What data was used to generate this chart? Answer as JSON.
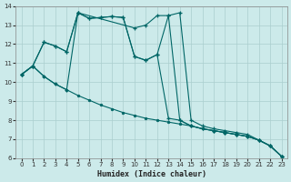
{
  "xlabel": "Humidex (Indice chaleur)",
  "xlim": [
    -0.5,
    23.5
  ],
  "ylim": [
    6,
    14
  ],
  "xticks": [
    0,
    1,
    2,
    3,
    4,
    5,
    6,
    7,
    8,
    9,
    10,
    11,
    12,
    13,
    14,
    15,
    16,
    17,
    18,
    19,
    20,
    21,
    22,
    23
  ],
  "yticks": [
    6,
    7,
    8,
    9,
    10,
    11,
    12,
    13,
    14
  ],
  "bg_color": "#cceaea",
  "line_color": "#006666",
  "grid_color": "#aacece",
  "lines": [
    {
      "x": [
        0,
        1,
        2,
        3,
        4,
        5,
        6,
        7,
        8,
        9,
        10,
        11,
        12,
        13,
        14,
        15,
        16,
        17,
        18,
        19,
        20,
        21,
        22,
        23
      ],
      "y": [
        10.4,
        10.85,
        10.3,
        9.9,
        9.6,
        9.3,
        9.05,
        8.8,
        8.6,
        8.4,
        8.25,
        8.1,
        8.0,
        7.9,
        7.8,
        7.7,
        7.55,
        7.45,
        7.35,
        7.25,
        7.15,
        6.95,
        6.65,
        6.1
      ],
      "marker": "o",
      "ms": 2.0
    },
    {
      "x": [
        0,
        1,
        2,
        3,
        4,
        5,
        6,
        7,
        8,
        9,
        10,
        11,
        12,
        13,
        14,
        15,
        16,
        17,
        18,
        19,
        20,
        21,
        22,
        23
      ],
      "y": [
        10.4,
        10.85,
        10.3,
        9.9,
        9.6,
        13.65,
        13.35,
        13.4,
        13.45,
        13.4,
        11.35,
        11.15,
        11.45,
        8.1,
        8.0,
        7.7,
        7.55,
        7.45,
        7.35,
        7.25,
        7.15,
        6.95,
        6.65,
        6.1
      ],
      "marker": "+",
      "ms": 3.5
    },
    {
      "x": [
        0,
        1,
        2,
        3,
        4,
        5,
        6,
        7,
        8,
        9,
        10,
        11,
        12,
        13,
        14,
        15,
        16,
        17,
        18,
        19,
        20,
        21,
        22,
        23
      ],
      "y": [
        10.4,
        10.85,
        12.1,
        11.9,
        11.6,
        13.65,
        13.35,
        13.4,
        13.45,
        13.4,
        11.35,
        11.15,
        11.45,
        13.5,
        8.0,
        7.7,
        7.55,
        7.45,
        7.35,
        7.25,
        7.15,
        6.95,
        6.65,
        6.1
      ],
      "marker": "+",
      "ms": 3.5
    },
    {
      "x": [
        0,
        1,
        2,
        3,
        4,
        5,
        10,
        11,
        12,
        13,
        14,
        15,
        16,
        17,
        18,
        19,
        20,
        21,
        22,
        23
      ],
      "y": [
        10.4,
        10.85,
        12.1,
        11.9,
        11.6,
        13.65,
        12.85,
        13.0,
        13.5,
        13.5,
        13.65,
        8.0,
        7.7,
        7.55,
        7.45,
        7.35,
        7.25,
        6.95,
        6.65,
        6.1
      ],
      "marker": "+",
      "ms": 3.5
    }
  ]
}
